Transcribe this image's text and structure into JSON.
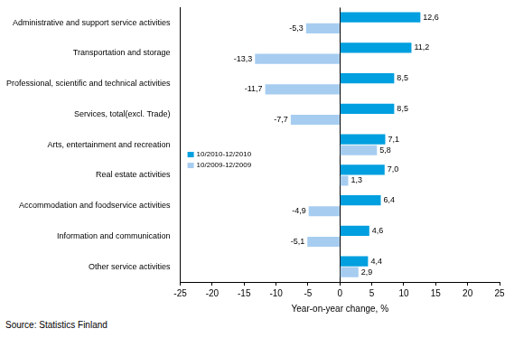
{
  "chart_data": {
    "type": "bar",
    "orientation": "horizontal",
    "categories": [
      "Administrative and support service activities",
      "Transportation and storage",
      "Professional, scientific and technical activities",
      "Services, total(excl. Trade)",
      "Arts, entertainment and recreation",
      "Real estate activities",
      "Accommodation and foodservice activities",
      "Information and communication",
      "Other service activities"
    ],
    "series": [
      {
        "name": "10/2010-12/2010",
        "color": "#009FDF",
        "values": [
          12.6,
          11.2,
          8.5,
          8.5,
          7.1,
          7.0,
          6.4,
          4.6,
          4.4
        ],
        "value_labels": [
          "12,6",
          "11,2",
          "8,5",
          "8,5",
          "7,1",
          "7,0",
          "6,4",
          "4,6",
          "4,4"
        ]
      },
      {
        "name": "10/2009-12/2009",
        "color": "#A6CDF0",
        "values": [
          -5.3,
          -13.3,
          -11.7,
          -7.7,
          5.8,
          1.3,
          -4.9,
          -5.1,
          2.9
        ],
        "value_labels": [
          "-5,3",
          "-13,3",
          "-11,7",
          "-7,7",
          "5,8",
          "1,3",
          "-4,9",
          "-5,1",
          "2,9"
        ]
      }
    ],
    "xlim": [
      -25,
      25
    ],
    "xticks": [
      -25,
      -20,
      -15,
      -10,
      -5,
      0,
      5,
      10,
      15,
      20,
      25
    ],
    "x_label": "Year-on-year change, %",
    "annotations": [
      "Source: Statistics Finland"
    ],
    "grid": false,
    "legend": "left",
    "data_labels": true
  }
}
